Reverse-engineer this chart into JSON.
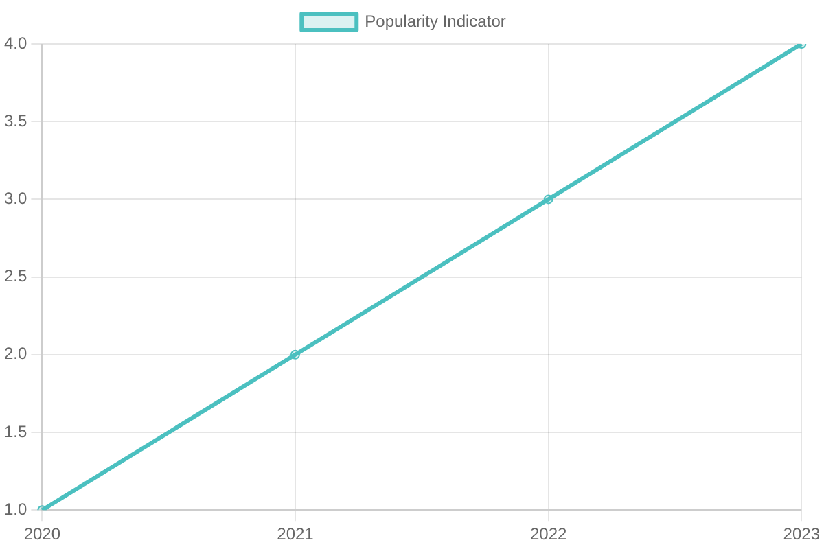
{
  "chart_data": {
    "type": "line",
    "categories": [
      "2020",
      "2021",
      "2022",
      "2023"
    ],
    "series": [
      {
        "name": "Popularity Indicator",
        "color": "#4bc0c0",
        "values": [
          1,
          2,
          3,
          4
        ]
      }
    ],
    "ylim": [
      1,
      4
    ],
    "yticks": [
      {
        "value": 1,
        "label": "1.0"
      },
      {
        "value": 1.5,
        "label": "1.5"
      },
      {
        "value": 2,
        "label": "2.0"
      },
      {
        "value": 2.5,
        "label": "2.5"
      },
      {
        "value": 3,
        "label": "3.0"
      },
      {
        "value": 3.5,
        "label": "3.5"
      },
      {
        "value": 4,
        "label": "4.0"
      }
    ],
    "grid": true,
    "legend": "top",
    "marker": "circle",
    "line_style": "solid"
  }
}
